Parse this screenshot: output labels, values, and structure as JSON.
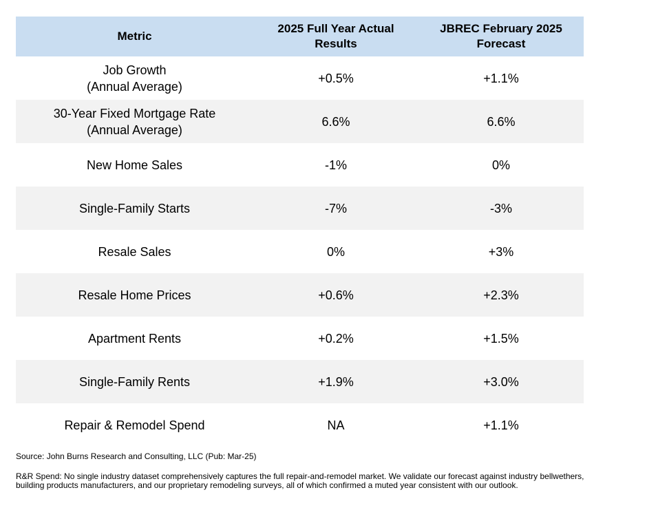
{
  "table": {
    "header": [
      "Metric",
      "2025 Full Year Actual Results",
      "JBREC February 2025 Forecast"
    ],
    "rows": [
      {
        "metric": [
          "Job Growth",
          "(Annual Average)"
        ],
        "actual": "+0.5%",
        "forecast": "+1.1%"
      },
      {
        "metric": [
          "30-Year Fixed Mortgage Rate",
          "(Annual Average)"
        ],
        "actual": "6.6%",
        "forecast": "6.6%"
      },
      {
        "metric": [
          "New Home Sales"
        ],
        "actual": "-1%",
        "forecast": "0%"
      },
      {
        "metric": [
          "Single-Family Starts"
        ],
        "actual": "-7%",
        "forecast": "-3%"
      },
      {
        "metric": [
          "Resale Sales"
        ],
        "actual": "0%",
        "forecast": "+3%"
      },
      {
        "metric": [
          "Resale Home Prices"
        ],
        "actual": "+0.6%",
        "forecast": "+2.3%"
      },
      {
        "metric": [
          "Apartment Rents"
        ],
        "actual": "+0.2%",
        "forecast": "+1.5%"
      },
      {
        "metric": [
          "Single-Family Rents"
        ],
        "actual": "+1.9%",
        "forecast": "+3.0%"
      },
      {
        "metric": [
          "Repair & Remodel Spend"
        ],
        "actual": "NA",
        "forecast": "+1.1%"
      }
    ]
  },
  "notes": {
    "source": "Source: John Burns Research and Consulting, LLC (Pub: Mar-25)",
    "footnote": "R&R Spend: No single industry dataset comprehensively captures the full repair-and-remodel market. We validate our forecast against industry bellwethers, building products manufacturers, and our proprietary remodeling surveys, all of which confirmed a muted year consistent with our outlook."
  }
}
